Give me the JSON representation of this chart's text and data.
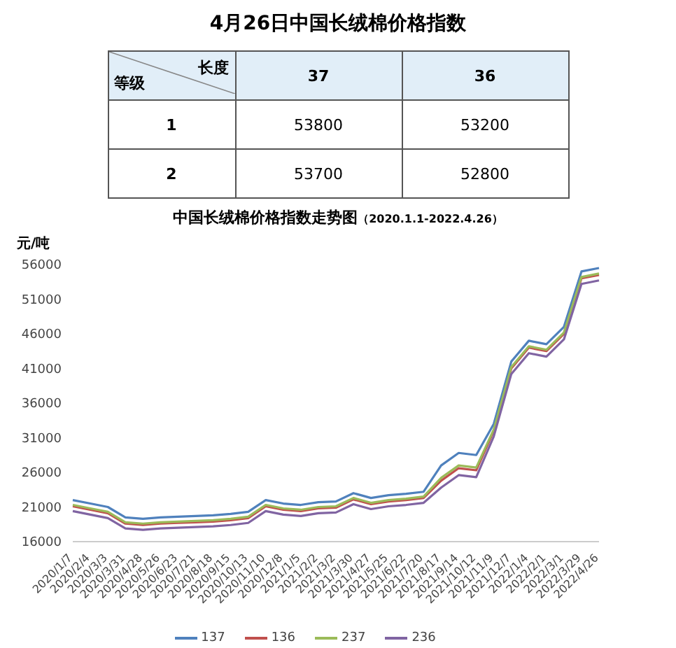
{
  "chart_data": [
    {
      "type": "heatmap",
      "title": "4月26日中国长绒棉价格指数",
      "xlabel": "长度",
      "ylabel": "等级",
      "categories": [
        "37",
        "36"
      ],
      "y_categories": [
        "1",
        "2"
      ],
      "cells": [
        [
          53800,
          53200
        ],
        [
          53700,
          52800
        ]
      ],
      "data_labels": true
    },
    {
      "type": "line",
      "title": "中国长绒棉价格指数走势图",
      "subtitle": "（2020.1.1-2022.4.26）",
      "ylabel": "元/吨",
      "categories": [
        "2020/1/7",
        "2020/2/4",
        "2020/3/3",
        "2020/3/31",
        "2020/4/28",
        "2020/5/26",
        "2020/6/23",
        "2020/7/21",
        "2020/8/18",
        "2020/9/15",
        "2020/10/13",
        "2020/11/10",
        "2020/12/8",
        "2021/1/5",
        "2021/2/2",
        "2021/3/2",
        "2021/3/30",
        "2021/4/27",
        "2021/5/25",
        "2021/6/22",
        "2021/7/20",
        "2021/8/17",
        "2021/9/14",
        "2021/10/12",
        "2021/11/9",
        "2021/12/7",
        "2022/1/4",
        "2022/2/1",
        "2022/3/1",
        "2022/3/29",
        "2022/4/26"
      ],
      "series": [
        {
          "name": "137",
          "color": "#4f81bd",
          "values": [
            22000,
            21500,
            21000,
            19500,
            19300,
            19500,
            19600,
            19700,
            19800,
            20000,
            20300,
            22000,
            21500,
            21300,
            21700,
            21800,
            23000,
            22300,
            22700,
            22900,
            23200,
            27000,
            28800,
            28500,
            33000,
            42000,
            45000,
            44500,
            47000,
            55000,
            55500
          ]
        },
        {
          "name": "136",
          "color": "#c0504d",
          "values": [
            21100,
            20600,
            20100,
            18600,
            18400,
            18600,
            18700,
            18800,
            18900,
            19100,
            19400,
            21100,
            20600,
            20400,
            20800,
            20900,
            22100,
            21400,
            21800,
            22000,
            22300,
            24800,
            26600,
            26300,
            32000,
            41000,
            44000,
            43500,
            46000,
            54000,
            54500
          ]
        },
        {
          "name": "237",
          "color": "#9bbb59",
          "values": [
            21300,
            20800,
            20300,
            18800,
            18600,
            18800,
            18900,
            19000,
            19100,
            19300,
            19600,
            21300,
            20800,
            20600,
            21000,
            21100,
            22300,
            21600,
            22000,
            22200,
            22500,
            25200,
            27000,
            26700,
            32200,
            41200,
            44200,
            43700,
            46200,
            54200,
            54700
          ]
        },
        {
          "name": "236",
          "color": "#8064a2",
          "values": [
            20400,
            19900,
            19400,
            17900,
            17700,
            17900,
            18000,
            18100,
            18200,
            18400,
            18700,
            20400,
            19900,
            19700,
            20100,
            20200,
            21400,
            20700,
            21100,
            21300,
            21600,
            23800,
            25600,
            25300,
            31200,
            40200,
            43200,
            42700,
            45200,
            53200,
            53700
          ]
        }
      ],
      "ylim": [
        16000,
        56000
      ],
      "yticks": [
        16000,
        21000,
        26000,
        31000,
        36000,
        41000,
        46000,
        51000,
        56000
      ],
      "grid": false,
      "legend": "bottom",
      "marker": "none",
      "line_style": "solid"
    }
  ]
}
